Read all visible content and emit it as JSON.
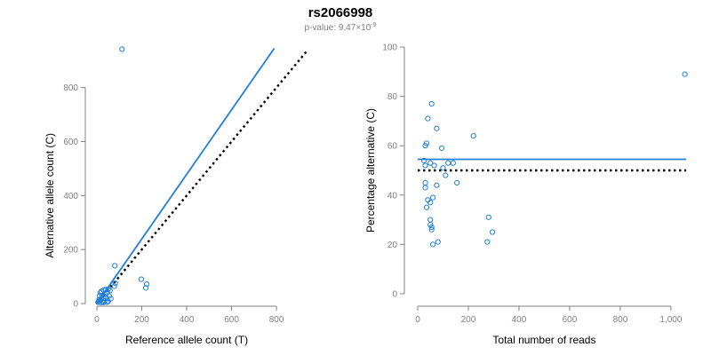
{
  "chart_data": [
    {
      "type": "scatter",
      "title": "rs2066998",
      "subtitle": "p-value: 9.47×10",
      "subtitle_exponent": "-9",
      "xlabel": "Reference allele count (T)",
      "ylabel": "Alternative allele count (C)",
      "xlim": [
        0,
        950
      ],
      "ylim": [
        0,
        950
      ],
      "xticks": [
        0,
        200,
        400,
        600,
        800
      ],
      "yticks": [
        0,
        200,
        400,
        600,
        800
      ],
      "xtick_labels": [
        "0",
        "200",
        "400",
        "600",
        "800"
      ],
      "ytick_labels": [
        "0",
        "200",
        "400",
        "600",
        "800"
      ],
      "grid": false,
      "colors": {
        "points": "#1f7fd6",
        "fit": "#1f7fd6",
        "reference": "#000000"
      },
      "points": [
        {
          "x": 112,
          "y": 942
        },
        {
          "x": 80,
          "y": 140
        },
        {
          "x": 198,
          "y": 90
        },
        {
          "x": 222,
          "y": 72
        },
        {
          "x": 218,
          "y": 58
        },
        {
          "x": 82,
          "y": 75
        },
        {
          "x": 78,
          "y": 64
        },
        {
          "x": 58,
          "y": 48
        },
        {
          "x": 50,
          "y": 52
        },
        {
          "x": 40,
          "y": 52
        },
        {
          "x": 30,
          "y": 50
        },
        {
          "x": 20,
          "y": 45
        },
        {
          "x": 15,
          "y": 40
        },
        {
          "x": 45,
          "y": 40
        },
        {
          "x": 35,
          "y": 35
        },
        {
          "x": 25,
          "y": 30
        },
        {
          "x": 12,
          "y": 28
        },
        {
          "x": 55,
          "y": 28
        },
        {
          "x": 40,
          "y": 24
        },
        {
          "x": 30,
          "y": 20
        },
        {
          "x": 20,
          "y": 18
        },
        {
          "x": 62,
          "y": 18
        },
        {
          "x": 10,
          "y": 15
        },
        {
          "x": 15,
          "y": 12
        },
        {
          "x": 35,
          "y": 10
        },
        {
          "x": 50,
          "y": 8
        },
        {
          "x": 8,
          "y": 8
        },
        {
          "x": 25,
          "y": 6
        },
        {
          "x": 5,
          "y": 5
        },
        {
          "x": 45,
          "y": 5
        },
        {
          "x": 30,
          "y": 4
        },
        {
          "x": 18,
          "y": 3
        }
      ],
      "fit_line": {
        "x": [
          0,
          790
        ],
        "y": [
          0,
          945
        ]
      },
      "reference_line": {
        "x": [
          0,
          940
        ],
        "y": [
          0,
          940
        ]
      }
    },
    {
      "type": "scatter",
      "xlabel": "Total number of reads",
      "ylabel": "Percentage alternative (C)",
      "xlim": [
        0,
        1060
      ],
      "ylim": [
        0,
        100
      ],
      "xticks": [
        0,
        200,
        400,
        600,
        800,
        1000
      ],
      "yticks": [
        0,
        20,
        40,
        60,
        80,
        100
      ],
      "xtick_labels": [
        "0",
        "200",
        "400",
        "600",
        "800",
        "1,000"
      ],
      "ytick_labels": [
        "0",
        "20",
        "40",
        "60",
        "80",
        "100"
      ],
      "grid": false,
      "colors": {
        "points": "#1f7fd6",
        "fit": "#1f7fd6",
        "reference": "#000000"
      },
      "points": [
        {
          "x": 1055,
          "y": 89
        },
        {
          "x": 55,
          "y": 77
        },
        {
          "x": 40,
          "y": 71
        },
        {
          "x": 75,
          "y": 67
        },
        {
          "x": 220,
          "y": 64
        },
        {
          "x": 35,
          "y": 61
        },
        {
          "x": 30,
          "y": 60
        },
        {
          "x": 95,
          "y": 59
        },
        {
          "x": 25,
          "y": 54
        },
        {
          "x": 50,
          "y": 53
        },
        {
          "x": 120,
          "y": 53
        },
        {
          "x": 140,
          "y": 53
        },
        {
          "x": 30,
          "y": 52
        },
        {
          "x": 65,
          "y": 52
        },
        {
          "x": 100,
          "y": 51
        },
        {
          "x": 110,
          "y": 48
        },
        {
          "x": 155,
          "y": 45
        },
        {
          "x": 30,
          "y": 45
        },
        {
          "x": 75,
          "y": 44
        },
        {
          "x": 30,
          "y": 43
        },
        {
          "x": 60,
          "y": 39
        },
        {
          "x": 40,
          "y": 38
        },
        {
          "x": 50,
          "y": 37
        },
        {
          "x": 35,
          "y": 35
        },
        {
          "x": 280,
          "y": 31
        },
        {
          "x": 50,
          "y": 30
        },
        {
          "x": 50,
          "y": 28
        },
        {
          "x": 55,
          "y": 27
        },
        {
          "x": 55,
          "y": 26
        },
        {
          "x": 295,
          "y": 25
        },
        {
          "x": 80,
          "y": 21
        },
        {
          "x": 275,
          "y": 21
        },
        {
          "x": 60,
          "y": 20
        }
      ],
      "fit_line": {
        "x": [
          0,
          1060
        ],
        "y": [
          54.5,
          54.5
        ]
      },
      "reference_line": {
        "x": [
          0,
          1060
        ],
        "y": [
          50,
          50
        ]
      }
    }
  ]
}
